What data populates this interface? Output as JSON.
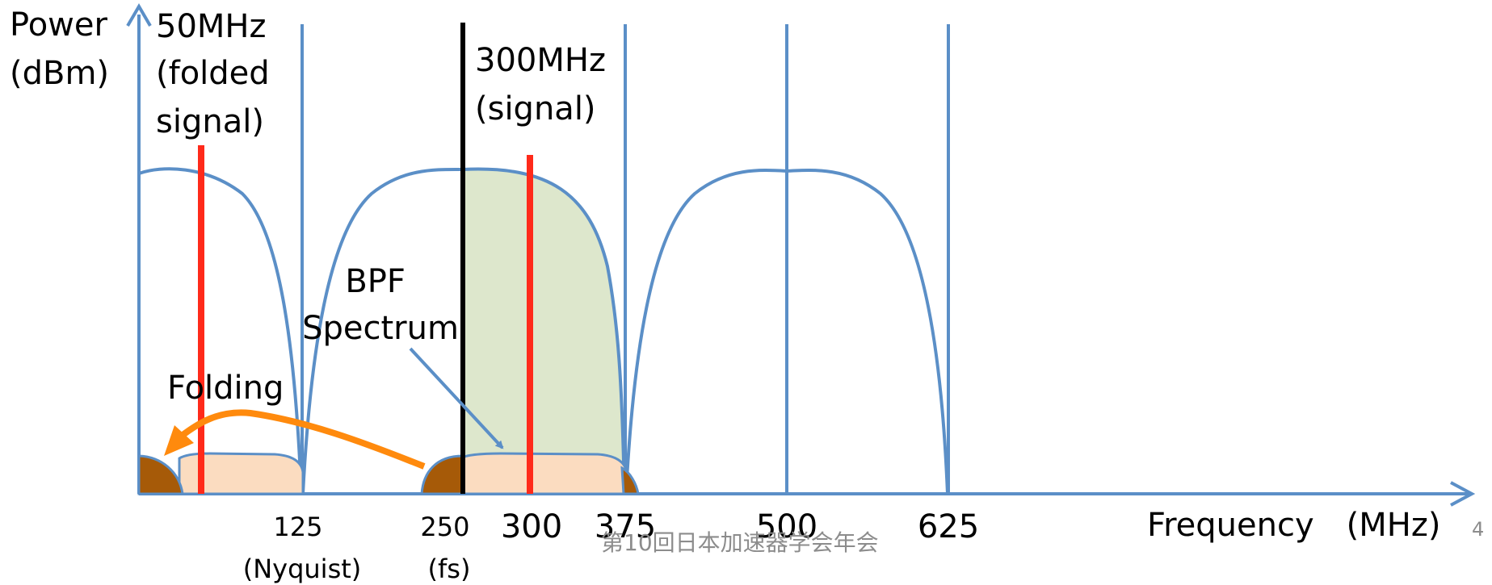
{
  "labels": {
    "y_axis": [
      "Power",
      "(dBm)"
    ],
    "folded_signal": [
      "50MHz",
      "(folded",
      "signal)"
    ],
    "signal": [
      "300MHz",
      "(signal)"
    ],
    "bpf": [
      "BPF",
      "Spectrum"
    ],
    "folding": "Folding",
    "x_axis": "Frequency　(MHz)",
    "tick_125": [
      "125",
      "(Nyquist)"
    ],
    "tick_250": [
      "250",
      "(fs)"
    ],
    "tick_300": "300",
    "tick_375": "375",
    "tick_500": "500",
    "tick_625": "625"
  },
  "footer": {
    "conference": "第10回日本加速器学会年会",
    "page_number": "4"
  },
  "colors": {
    "axis": "#5b8fc7",
    "signal": "#ff2a1a",
    "fs_line": "#000000",
    "bpf_fill": "#dde7cc",
    "lobe_fill": "#fbdcc0",
    "edge_fill": "#a65a08",
    "arrow": "#ff8a0d"
  }
}
